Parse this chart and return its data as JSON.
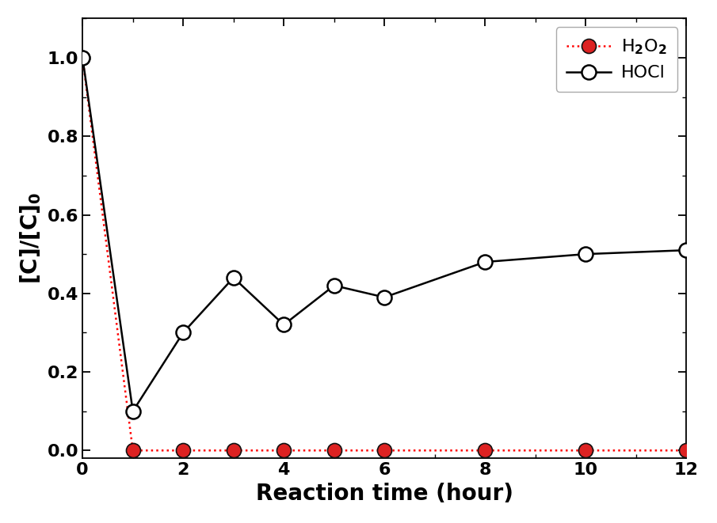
{
  "h2o2_x": [
    0,
    1,
    2,
    3,
    4,
    5,
    6,
    8,
    10,
    12
  ],
  "h2o2_y": [
    1.0,
    0.0,
    0.0,
    0.0,
    0.0,
    0.0,
    0.0,
    0.0,
    0.0,
    0.0
  ],
  "hocl_x": [
    0,
    1,
    2,
    3,
    4,
    5,
    6,
    8,
    10,
    12
  ],
  "hocl_y": [
    1.0,
    0.1,
    0.3,
    0.44,
    0.32,
    0.42,
    0.39,
    0.48,
    0.5,
    0.51
  ],
  "h2o2_line_color": "#ff0000",
  "h2o2_marker_facecolor": "#dd2222",
  "h2o2_marker_edgecolor": "#111111",
  "hocl_line_color": "#000000",
  "hocl_marker_facecolor": "#ffffff",
  "hocl_marker_edgecolor": "#000000",
  "xlabel": "Reaction time (hour)",
  "ylabel": "[C]/[C]",
  "ylabel_sub": "0",
  "xlim": [
    0,
    12
  ],
  "ylim": [
    -0.02,
    1.1
  ],
  "xticks": [
    0,
    2,
    4,
    6,
    8,
    10,
    12
  ],
  "yticks": [
    0.0,
    0.2,
    0.4,
    0.6,
    0.8,
    1.0
  ],
  "legend_h2o2": "H$_2$O$_2$",
  "legend_hocl": "HOCl",
  "marker_size_h2o2": 13,
  "marker_size_hocl": 13,
  "line_width": 1.8,
  "font_size_label": 20,
  "font_size_tick": 16,
  "font_size_legend": 16,
  "background_color": "#ffffff"
}
